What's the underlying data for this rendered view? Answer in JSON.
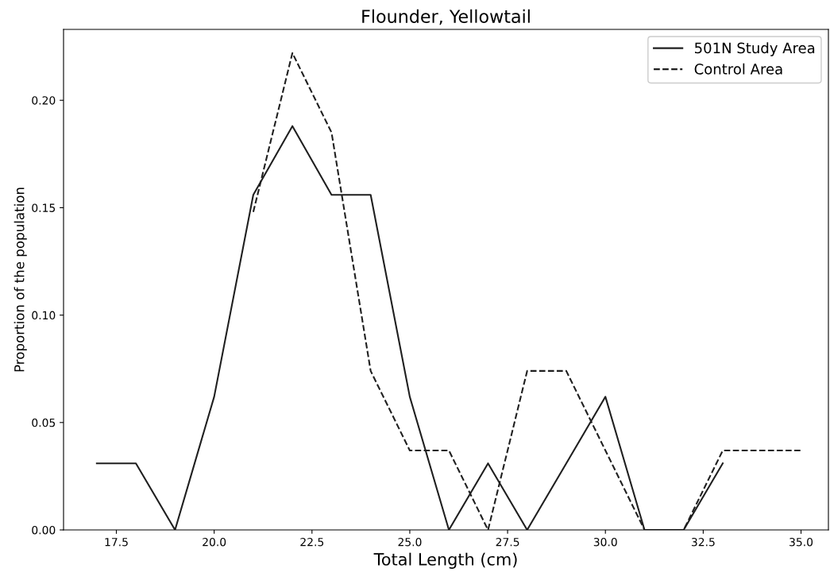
{
  "chart_data": {
    "type": "line",
    "title": "Flounder, Yellowtail",
    "xlabel": "Total Length (cm)",
    "ylabel": "Proportion of the population",
    "series": [
      {
        "name": "501N Study Area",
        "color": "#1f1f1f",
        "line_style": "solid",
        "x": [
          17,
          18,
          19,
          20,
          21,
          22,
          23,
          24,
          25,
          26,
          27,
          28,
          29,
          30,
          31,
          32,
          33
        ],
        "values": [
          0.031,
          0.031,
          0,
          0.062,
          0.156,
          0.188,
          0.156,
          0.156,
          0.062,
          0,
          0.031,
          0,
          0.031,
          0.062,
          0,
          0,
          0.031
        ]
      },
      {
        "name": "Control Area",
        "color": "#1f1f1f",
        "line_style": "dashed",
        "x": [
          21,
          22,
          23,
          24,
          25,
          26,
          27,
          28,
          29,
          30,
          31,
          32,
          33,
          34,
          35
        ],
        "values": [
          0.148,
          0.222,
          0.185,
          0.074,
          0.037,
          0.037,
          0,
          0.074,
          0.074,
          0.037,
          0,
          0,
          0.037,
          0.037,
          0.037
        ]
      }
    ],
    "xlim": [
      16.15,
      35.7
    ],
    "ylim": [
      0,
      0.233
    ],
    "xticks": [
      {
        "value": 17.5,
        "label": "17.5"
      },
      {
        "value": 20,
        "label": "20.0"
      },
      {
        "value": 22.5,
        "label": "22.5"
      },
      {
        "value": 25,
        "label": "25.0"
      },
      {
        "value": 27.5,
        "label": "27.5"
      },
      {
        "value": 30,
        "label": "30.0"
      },
      {
        "value": 32.5,
        "label": "32.5"
      },
      {
        "value": 35,
        "label": "35.0"
      }
    ],
    "yticks": [
      {
        "value": 0,
        "label": "0.00"
      },
      {
        "value": 0.05,
        "label": "0.05"
      },
      {
        "value": 0.1,
        "label": "0.10"
      },
      {
        "value": 0.15,
        "label": "0.15"
      },
      {
        "value": 0.2,
        "label": "0.20"
      }
    ],
    "grid": false,
    "legend": "top right",
    "marker": "none"
  }
}
